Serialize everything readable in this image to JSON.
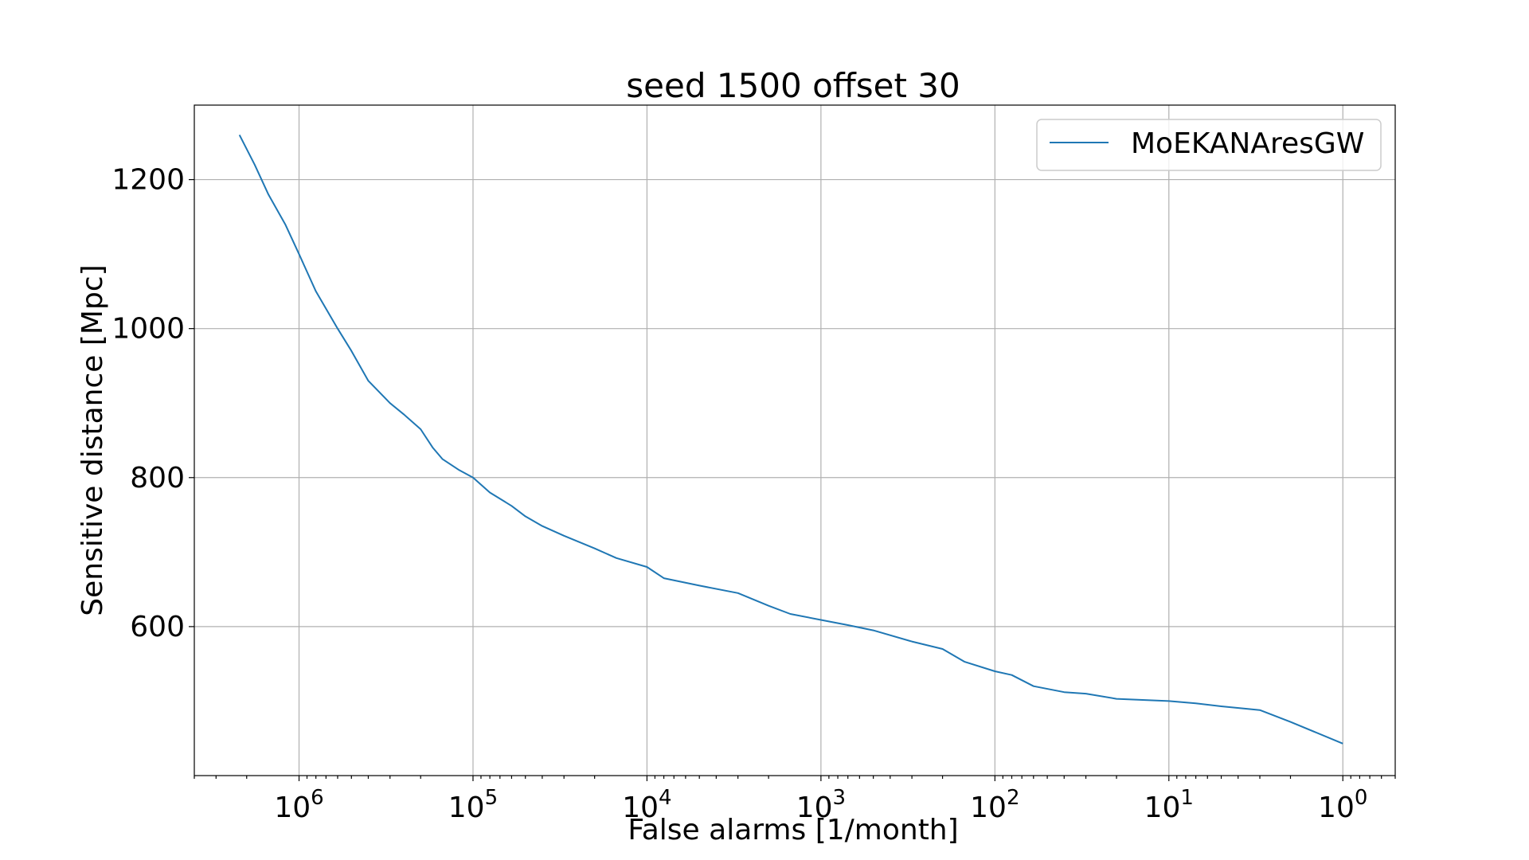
{
  "chart_data": {
    "type": "line",
    "title": "seed 1500 offset 30",
    "xlabel": "False alarms [1/month]",
    "ylabel": "Sensitive distance [Mpc]",
    "x_scale": "log",
    "x_reversed": true,
    "xlim": [
      4000000,
      0.5
    ],
    "ylim": [
      400,
      1300
    ],
    "grid": true,
    "legend_position": "top-right",
    "x_ticks": [
      {
        "value": 1000000,
        "base": "10",
        "exp": "6"
      },
      {
        "value": 100000,
        "base": "10",
        "exp": "5"
      },
      {
        "value": 10000,
        "base": "10",
        "exp": "4"
      },
      {
        "value": 1000,
        "base": "10",
        "exp": "3"
      },
      {
        "value": 100,
        "base": "10",
        "exp": "2"
      },
      {
        "value": 10,
        "base": "10",
        "exp": "1"
      },
      {
        "value": 1,
        "base": "10",
        "exp": "0"
      }
    ],
    "y_ticks": [
      {
        "value": 600,
        "label": "600"
      },
      {
        "value": 800,
        "label": "800"
      },
      {
        "value": 1000,
        "label": "1000"
      },
      {
        "value": 1200,
        "label": "1200"
      }
    ],
    "series": [
      {
        "name": "MoEKANAresGW",
        "color": "#1f77b4",
        "x": [
          2200000,
          1800000,
          1500000,
          1200000,
          1000000,
          800000,
          600000,
          500000,
          400000,
          300000,
          250000,
          200000,
          170000,
          150000,
          120000,
          100000,
          80000,
          60000,
          50000,
          40000,
          30000,
          20000,
          15000,
          10000,
          8000,
          5000,
          3000,
          2000,
          1500,
          1000,
          700,
          500,
          300,
          200,
          150,
          100,
          80,
          60,
          40,
          30,
          20,
          10,
          7,
          5,
          3,
          2,
          1
        ],
        "y": [
          1260,
          1220,
          1180,
          1140,
          1100,
          1050,
          1000,
          970,
          930,
          900,
          885,
          865,
          840,
          825,
          810,
          800,
          780,
          762,
          748,
          735,
          722,
          705,
          692,
          680,
          665,
          655,
          645,
          628,
          617,
          609,
          602,
          595,
          580,
          570,
          553,
          540,
          535,
          520,
          512,
          510,
          503,
          500,
          497,
          493,
          488,
          472,
          443
        ]
      }
    ]
  }
}
